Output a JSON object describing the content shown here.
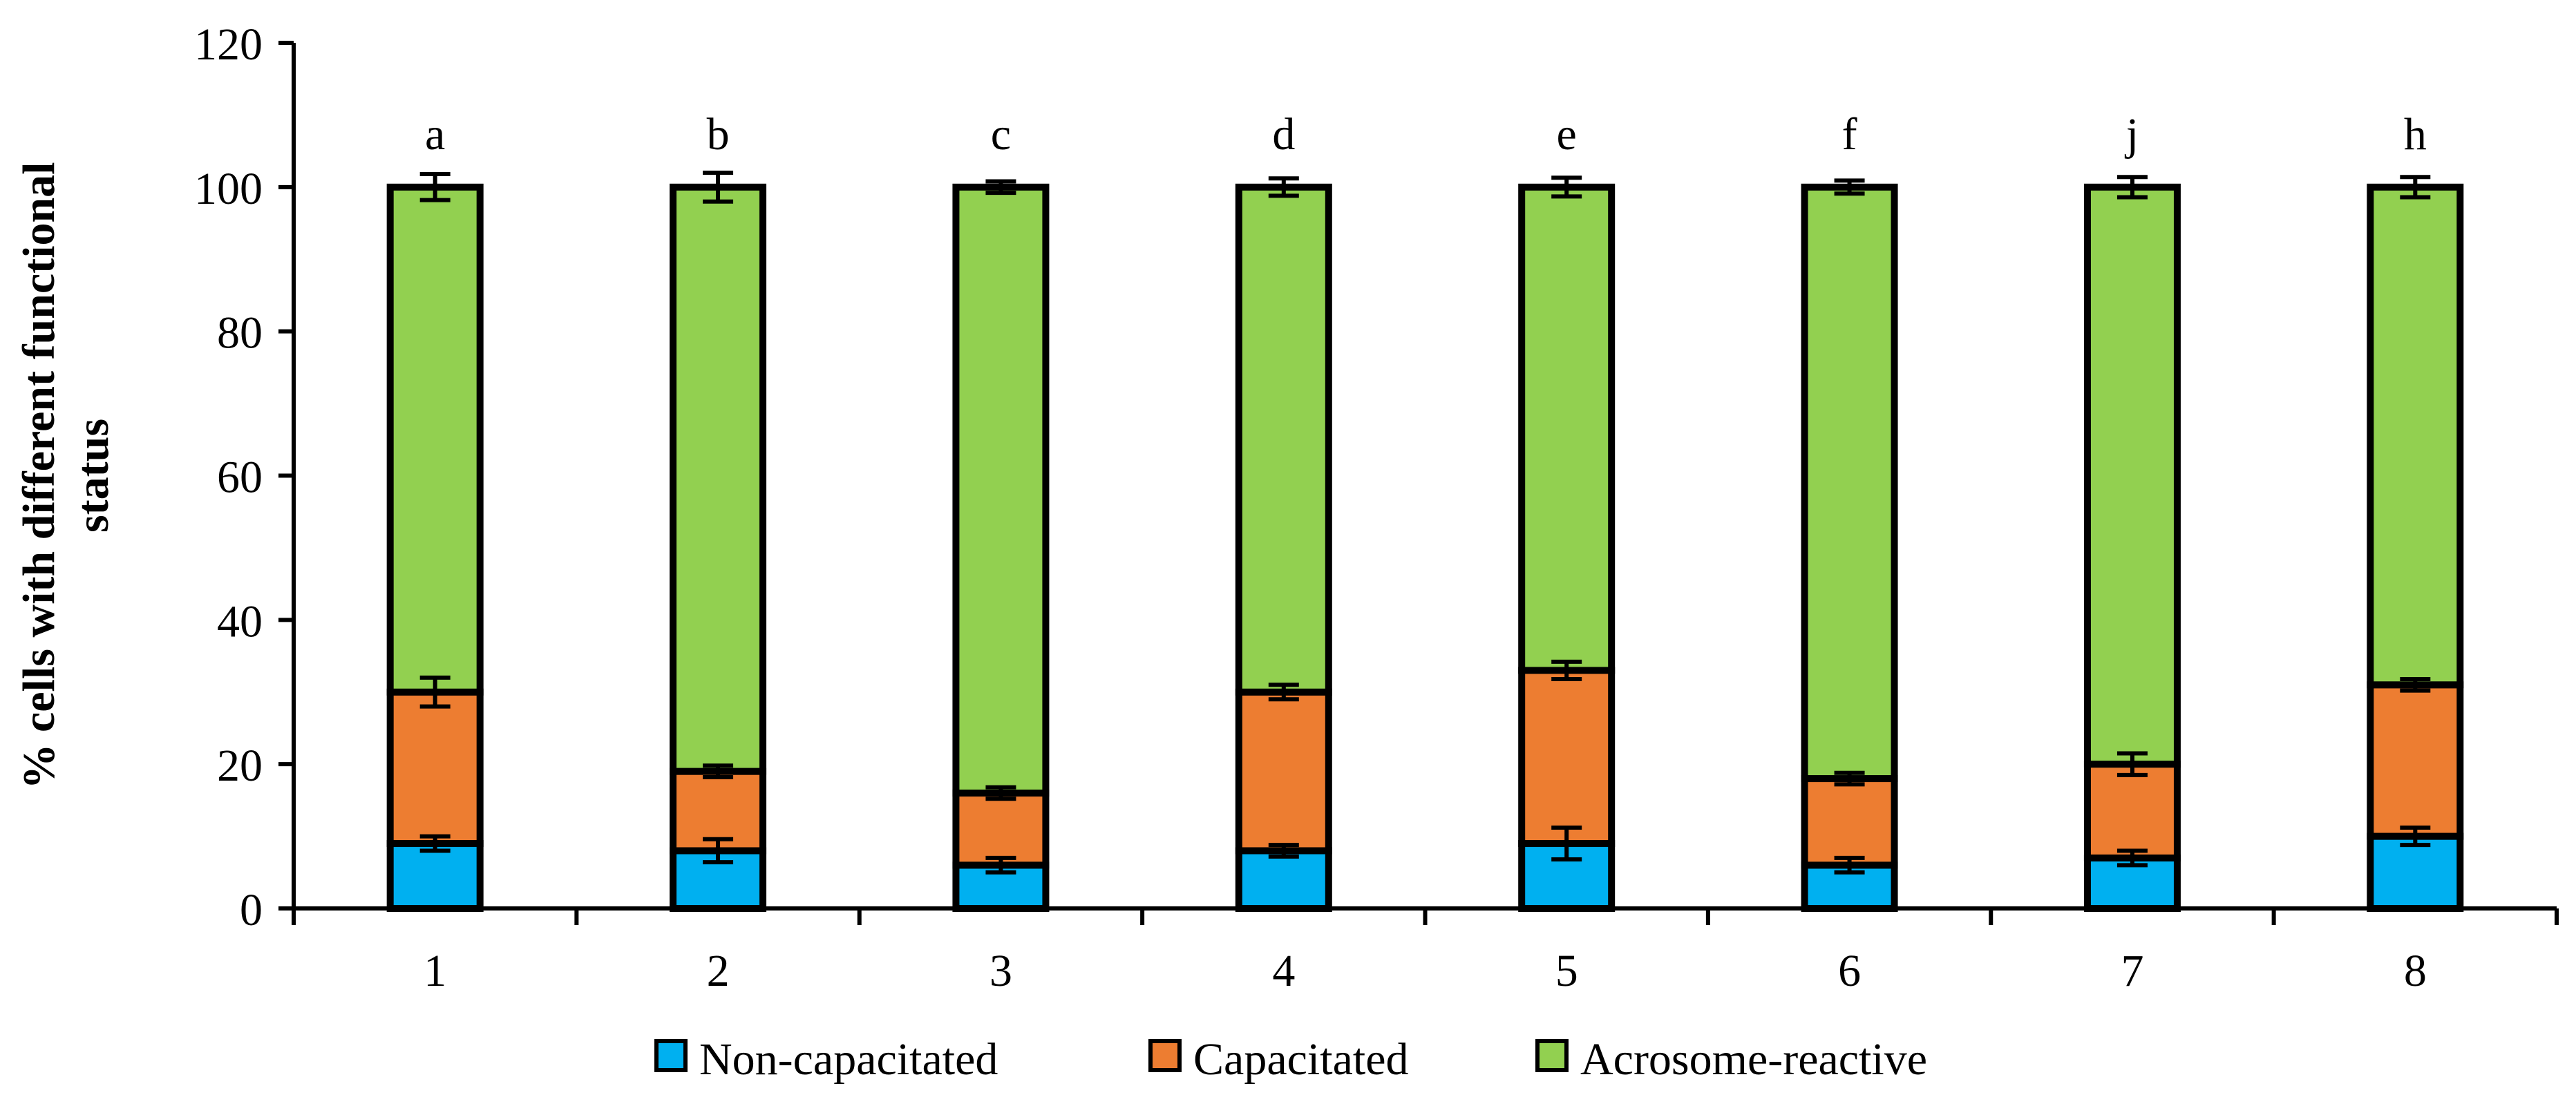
{
  "chart_data": {
    "type": "bar",
    "stacked": true,
    "title": "",
    "xlabel": "",
    "ylabel_lines": [
      "% cells with different functional",
      "status"
    ],
    "ylim": [
      0,
      120
    ],
    "yticks": [
      0,
      20,
      40,
      60,
      80,
      100,
      120
    ],
    "categories": [
      "1",
      "2",
      "3",
      "4",
      "5",
      "6",
      "7",
      "8"
    ],
    "significance_labels": [
      "a",
      "b",
      "c",
      "d",
      "e",
      "f",
      "j",
      "h"
    ],
    "series": [
      {
        "name": "Non-capacitated",
        "color": "#00B0F0",
        "values": [
          9,
          8,
          6,
          8,
          9,
          6,
          7,
          10
        ],
        "errors": [
          1.0,
          1.6,
          1.0,
          0.8,
          2.2,
          1.0,
          1.0,
          1.2
        ]
      },
      {
        "name": "Capacitated",
        "color": "#ED7D31",
        "values": [
          21,
          11,
          10,
          22,
          24,
          12,
          13,
          21
        ],
        "errors": [
          2.0,
          0.8,
          0.8,
          1.0,
          1.2,
          0.8,
          1.5,
          0.8
        ]
      },
      {
        "name": "Acrosome-reactive",
        "color": "#92D050",
        "values": [
          70,
          81,
          84,
          70,
          67,
          82,
          80,
          69
        ],
        "errors": [
          1.8,
          2.0,
          0.8,
          1.2,
          1.3,
          0.9,
          1.4,
          1.4
        ]
      }
    ],
    "legend_position": "bottom",
    "grid": false
  }
}
